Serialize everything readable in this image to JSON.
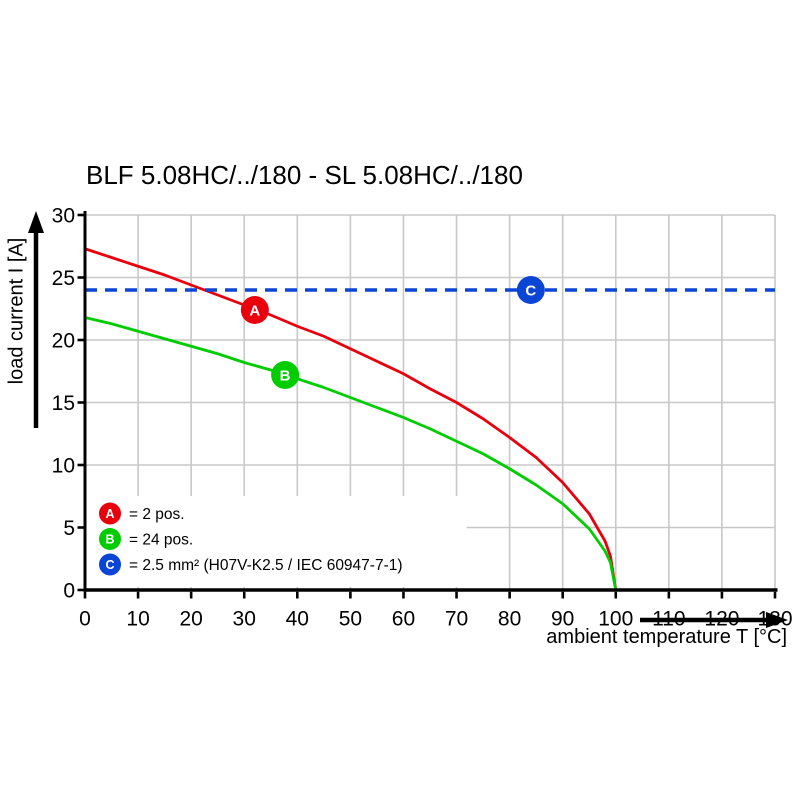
{
  "title": "BLF 5.08HC/../180 - SL 5.08HC/../180",
  "chart_data": {
    "type": "line",
    "title": "BLF 5.08HC/../180 - SL 5.08HC/../180",
    "xlabel": "ambient temperature T [°C]",
    "ylabel": "load current I [A]",
    "xlim": [
      0,
      130
    ],
    "ylim": [
      0,
      30
    ],
    "x_ticks": [
      0,
      10,
      20,
      30,
      40,
      50,
      60,
      70,
      80,
      90,
      100,
      110,
      120,
      130
    ],
    "y_ticks": [
      0,
      5,
      10,
      15,
      20,
      25,
      30
    ],
    "grid": true,
    "grid_color": "#c8c8c8",
    "axis_color": "#000000",
    "legend_position": "bottom-left-inside",
    "series": [
      {
        "name": "A",
        "legend_label": "= 2 pos.",
        "color": "#e8000d",
        "style": "solid",
        "x": [
          0,
          5,
          10,
          15,
          20,
          25,
          30,
          35,
          40,
          45,
          50,
          55,
          60,
          65,
          70,
          75,
          80,
          85,
          90,
          95,
          98,
          99,
          100
        ],
        "y": [
          27.3,
          26.6,
          25.9,
          25.2,
          24.4,
          23.6,
          22.8,
          22.0,
          21.1,
          20.3,
          19.3,
          18.3,
          17.3,
          16.1,
          15.0,
          13.7,
          12.2,
          10.6,
          8.6,
          6.1,
          3.9,
          2.7,
          0
        ],
        "marker": {
          "letter": "A",
          "x": 32,
          "y": 22.4
        }
      },
      {
        "name": "B",
        "legend_label": "= 24 pos.",
        "color": "#00cc00",
        "style": "solid",
        "x": [
          0,
          5,
          10,
          15,
          20,
          25,
          30,
          35,
          40,
          45,
          50,
          55,
          60,
          65,
          70,
          75,
          80,
          85,
          90,
          95,
          98,
          99,
          100
        ],
        "y": [
          21.8,
          21.3,
          20.7,
          20.1,
          19.5,
          18.9,
          18.2,
          17.6,
          16.9,
          16.2,
          15.4,
          14.6,
          13.8,
          12.9,
          11.9,
          10.9,
          9.7,
          8.4,
          6.9,
          4.9,
          3.1,
          2.2,
          0
        ],
        "marker": {
          "letter": "B",
          "x": 37.7,
          "y": 17.2
        }
      },
      {
        "name": "C",
        "legend_label": "= 2.5 mm² (H07V-K2.5 / IEC 60947-7-1)",
        "color": "#0b45d5",
        "style": "dashed",
        "x": [
          0,
          130
        ],
        "y": [
          24,
          24
        ],
        "marker": {
          "letter": "C",
          "x": 84,
          "y": 24
        }
      }
    ]
  }
}
